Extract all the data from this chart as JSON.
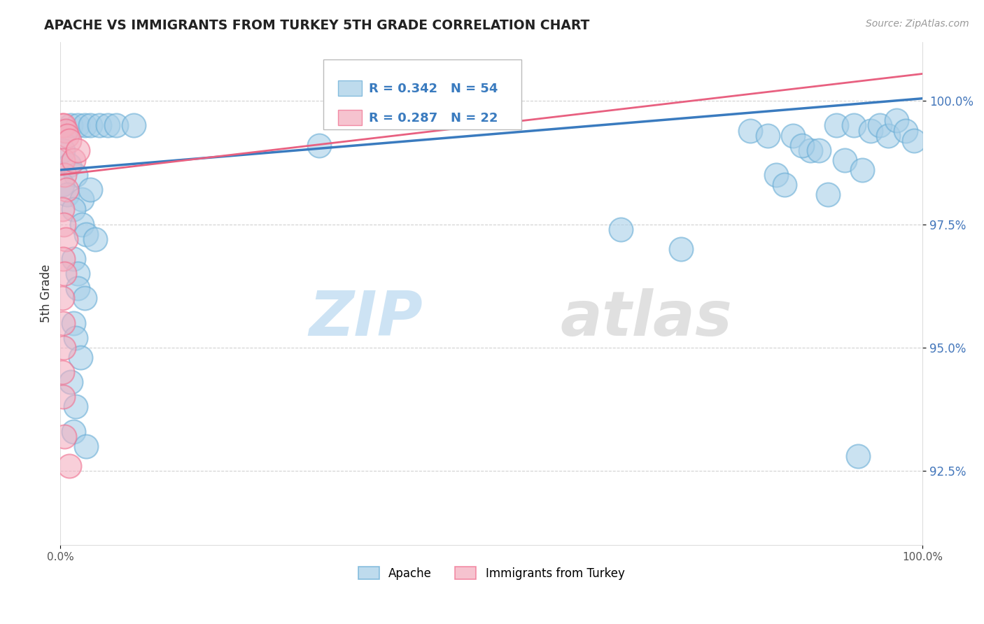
{
  "title": "APACHE VS IMMIGRANTS FROM TURKEY 5TH GRADE CORRELATION CHART",
  "source": "Source: ZipAtlas.com",
  "ylabel": "5th Grade",
  "yticks": [
    92.5,
    95.0,
    97.5,
    100.0
  ],
  "ytick_labels": [
    "92.5%",
    "95.0%",
    "97.5%",
    "100.0%"
  ],
  "xmin": 0.0,
  "xmax": 100.0,
  "ymin": 91.0,
  "ymax": 101.2,
  "blue_R": 0.342,
  "blue_N": 54,
  "pink_R": 0.287,
  "pink_N": 22,
  "blue_color": "#a8cfe8",
  "pink_color": "#f4afc0",
  "blue_edge_color": "#6aaed6",
  "pink_edge_color": "#f07090",
  "blue_line_color": "#3a7bbf",
  "pink_line_color": "#e86080",
  "watermark_zip": "ZIP",
  "watermark_atlas": "atlas",
  "legend_apache": "Apache",
  "legend_turkey": "Immigrants from Turkey",
  "blue_scatter": [
    [
      0.5,
      99.4
    ],
    [
      1.2,
      99.5
    ],
    [
      2.0,
      99.5
    ],
    [
      2.8,
      99.5
    ],
    [
      3.5,
      99.5
    ],
    [
      4.5,
      99.5
    ],
    [
      5.5,
      99.5
    ],
    [
      6.5,
      99.5
    ],
    [
      8.5,
      99.5
    ],
    [
      0.3,
      99.0
    ],
    [
      1.0,
      98.7
    ],
    [
      1.8,
      98.5
    ],
    [
      0.2,
      98.3
    ],
    [
      0.8,
      98.1
    ],
    [
      2.5,
      98.0
    ],
    [
      3.5,
      98.2
    ],
    [
      1.5,
      97.8
    ],
    [
      2.5,
      97.5
    ],
    [
      3.0,
      97.3
    ],
    [
      4.0,
      97.2
    ],
    [
      1.5,
      96.8
    ],
    [
      2.0,
      96.5
    ],
    [
      2.0,
      96.2
    ],
    [
      2.8,
      96.0
    ],
    [
      1.5,
      95.5
    ],
    [
      1.8,
      95.2
    ],
    [
      2.3,
      94.8
    ],
    [
      1.2,
      94.3
    ],
    [
      1.8,
      93.8
    ],
    [
      1.5,
      93.3
    ],
    [
      3.0,
      93.0
    ],
    [
      30.0,
      99.1
    ],
    [
      65.0,
      97.4
    ],
    [
      72.0,
      97.0
    ],
    [
      80.0,
      99.4
    ],
    [
      82.0,
      99.3
    ],
    [
      85.0,
      99.3
    ],
    [
      87.0,
      99.0
    ],
    [
      90.0,
      99.5
    ],
    [
      92.0,
      99.5
    ],
    [
      94.0,
      99.4
    ],
    [
      95.0,
      99.5
    ],
    [
      96.0,
      99.3
    ],
    [
      97.0,
      99.6
    ],
    [
      98.0,
      99.4
    ],
    [
      99.0,
      99.2
    ],
    [
      86.0,
      99.1
    ],
    [
      88.0,
      99.0
    ],
    [
      91.0,
      98.8
    ],
    [
      93.0,
      98.6
    ],
    [
      83.0,
      98.5
    ],
    [
      84.0,
      98.3
    ],
    [
      89.0,
      98.1
    ],
    [
      92.5,
      92.8
    ]
  ],
  "pink_scatter": [
    [
      0.2,
      99.5
    ],
    [
      0.4,
      99.5
    ],
    [
      0.6,
      99.4
    ],
    [
      0.8,
      99.3
    ],
    [
      1.0,
      99.2
    ],
    [
      0.3,
      98.8
    ],
    [
      0.5,
      98.5
    ],
    [
      0.7,
      98.2
    ],
    [
      0.2,
      97.8
    ],
    [
      0.4,
      97.5
    ],
    [
      0.6,
      97.2
    ],
    [
      0.3,
      96.8
    ],
    [
      0.5,
      96.5
    ],
    [
      0.2,
      96.0
    ],
    [
      0.3,
      95.5
    ],
    [
      0.4,
      95.0
    ],
    [
      0.2,
      94.5
    ],
    [
      0.3,
      94.0
    ],
    [
      0.5,
      93.2
    ],
    [
      1.5,
      98.8
    ],
    [
      2.0,
      99.0
    ],
    [
      1.0,
      92.6
    ]
  ],
  "blue_trend_x": [
    0,
    100
  ],
  "blue_trend_y": [
    98.6,
    100.05
  ],
  "pink_trend_x": [
    0,
    100
  ],
  "pink_trend_y": [
    98.5,
    100.55
  ]
}
